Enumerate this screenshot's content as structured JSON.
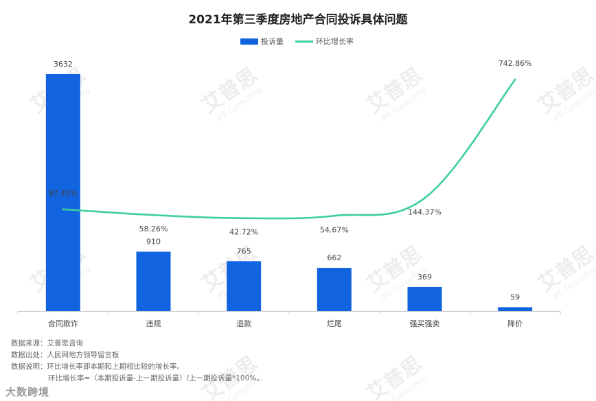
{
  "chart_data": {
    "type": "bar",
    "title": "2021年第三季度房地产合同投诉具体问题",
    "categories": [
      "合同欺诈",
      "违规",
      "退款",
      "烂尾",
      "强买强卖",
      "降价"
    ],
    "series": [
      {
        "name": "投诉量",
        "kind": "bar",
        "color": "#1163e0",
        "values": [
          3632,
          910,
          765,
          662,
          369,
          59
        ],
        "labels": [
          "3632",
          "910",
          "765",
          "662",
          "369",
          "59"
        ]
      },
      {
        "name": "环比增长率",
        "kind": "line",
        "color": "#3dcf9a",
        "values": [
          87.41,
          58.26,
          42.72,
          54.67,
          144.37,
          742.86
        ],
        "labels": [
          "87.41%",
          "58.26%",
          "42.72%",
          "54.67%",
          "144.37%",
          "742.86%"
        ]
      }
    ],
    "ylim_bar": [
      0,
      3632
    ],
    "ylim_line": [
      0,
      742.86
    ],
    "legend_position": "top-center",
    "grid": false
  },
  "notes": {
    "source": "数据来源：艾普思咨询",
    "origin": "数据出处：人民网地方领导留言板",
    "desc": "数据说明：环比增长率即本期和上期相比较的增长率。",
    "formula": "环比增长率=（本期投诉量-上一期投诉量）/上一期投诉量*100%。"
  },
  "watermark": {
    "brand": "艾普思",
    "sub": "iPS Consulting"
  },
  "corner_logo": "大数跨境",
  "colors": {
    "bar": "#1163e0",
    "line": "#3dcf9a",
    "axis": "#c8c8c8"
  }
}
